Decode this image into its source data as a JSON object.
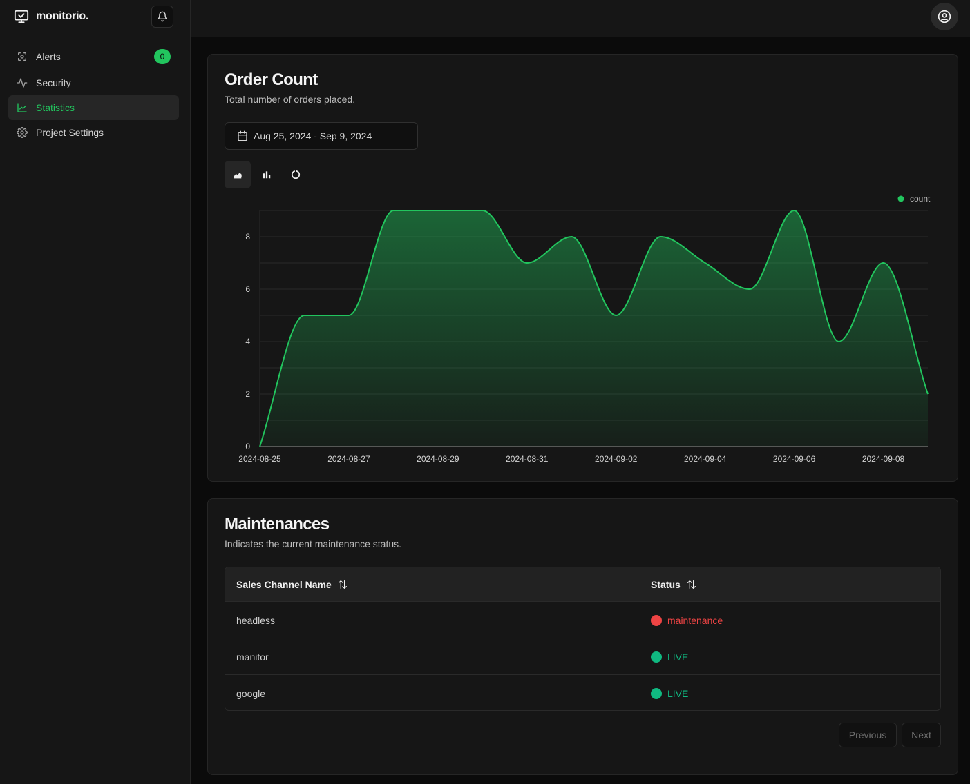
{
  "app": {
    "name": "monitorio."
  },
  "sidebar": {
    "items": [
      {
        "label": "Alerts",
        "icon": "alert-radar-icon",
        "badge": "0",
        "active": false
      },
      {
        "label": "Security",
        "icon": "activity-icon",
        "active": false
      },
      {
        "label": "Statistics",
        "icon": "line-chart-icon",
        "active": true
      },
      {
        "label": "Project Settings",
        "icon": "gear-icon",
        "active": false
      }
    ]
  },
  "colors": {
    "accent": "#22c55e",
    "danger": "#ef4444",
    "live": "#10b981"
  },
  "order_count": {
    "title": "Order Count",
    "subtitle": "Total number of orders placed.",
    "date_range": "Aug 25, 2024 - Sep 9, 2024",
    "chart_types": [
      "area-chart-icon",
      "bar-chart-icon",
      "donut-chart-icon"
    ]
  },
  "chart_data": {
    "type": "area",
    "x": [
      "2024-08-25",
      "2024-08-26",
      "2024-08-27",
      "2024-08-28",
      "2024-08-29",
      "2024-08-30",
      "2024-08-31",
      "2024-09-01",
      "2024-09-02",
      "2024-09-03",
      "2024-09-04",
      "2024-09-05",
      "2024-09-06",
      "2024-09-07",
      "2024-09-08",
      "2024-09-09"
    ],
    "x_tick_labels": [
      "2024-08-25",
      "2024-08-27",
      "2024-08-29",
      "2024-08-31",
      "2024-09-02",
      "2024-09-04",
      "2024-09-06",
      "2024-09-08"
    ],
    "series": [
      {
        "name": "count",
        "values": [
          0,
          5,
          5,
          9,
          9,
          9,
          7,
          8,
          5,
          8,
          7,
          6,
          9,
          4,
          7,
          2
        ],
        "color": "#22c55e"
      }
    ],
    "y_ticks": [
      0,
      2,
      4,
      6,
      8
    ],
    "ylim": [
      0,
      9
    ],
    "grid": true,
    "legend": "top-right"
  },
  "maintenances": {
    "title": "Maintenances",
    "subtitle": "Indicates the current maintenance status.",
    "columns": [
      "Sales Channel Name",
      "Status"
    ],
    "rows": [
      {
        "name": "headless",
        "status": "maintenance",
        "status_color": "#ef4444"
      },
      {
        "name": "manitor",
        "status": "LIVE",
        "status_color": "#10b981"
      },
      {
        "name": "google",
        "status": "LIVE",
        "status_color": "#10b981"
      }
    ],
    "pagination": {
      "previous": "Previous",
      "next": "Next"
    }
  }
}
